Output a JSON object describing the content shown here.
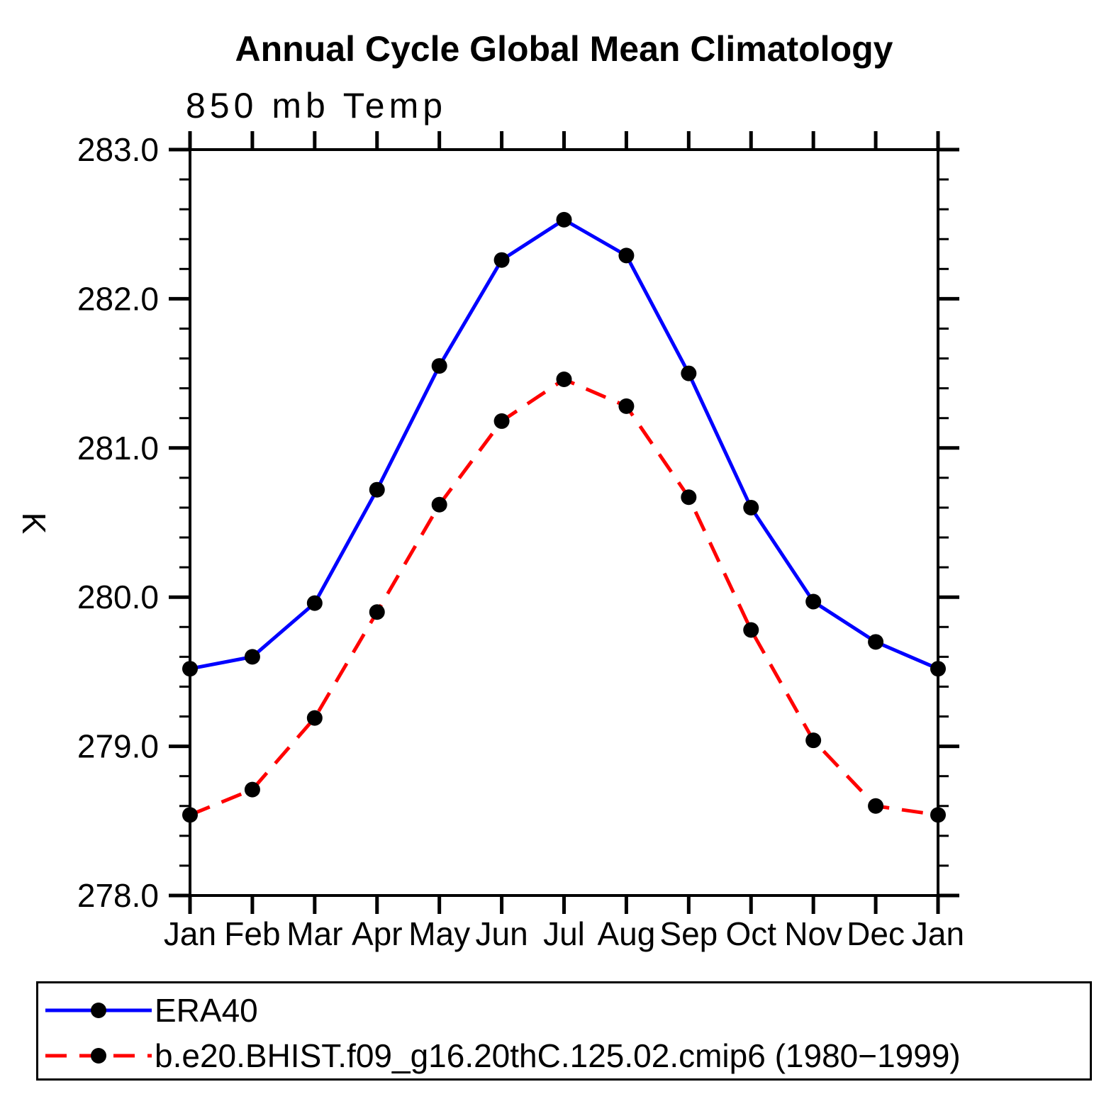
{
  "figure": {
    "background": "#ffffff",
    "frame_color": "#000000"
  },
  "chart_data": {
    "type": "line",
    "title": "Annual Cycle Global Mean Climatology",
    "subtitle": "850 mb Temp",
    "ylabel": "K",
    "xlabel": "",
    "grid": false,
    "legend_position": "bottom",
    "categories": [
      "Jan",
      "Feb",
      "Mar",
      "Apr",
      "May",
      "Jun",
      "Jul",
      "Aug",
      "Sep",
      "Oct",
      "Nov",
      "Dec",
      "Jan"
    ],
    "ylim": [
      278.0,
      283.0
    ],
    "ytick_major_step": 1.0,
    "ytick_minor_step": 0.2,
    "ytick_labels": [
      "278.0",
      "279.0",
      "280.0",
      "281.0",
      "282.0",
      "283.0"
    ],
    "series": [
      {
        "name": "ERA40",
        "color": "#0000ff",
        "line_style": "solid",
        "marker": "circle",
        "marker_color": "#000000",
        "values": [
          279.52,
          279.6,
          279.96,
          280.72,
          281.55,
          282.26,
          282.53,
          282.29,
          281.5,
          280.6,
          279.97,
          279.7,
          279.52
        ]
      },
      {
        "name": "b.e20.BHIST.f09_g16.20thC.125.02.cmip6 (1980−1999)",
        "color": "#ff0000",
        "line_style": "dashed",
        "marker": "circle",
        "marker_color": "#000000",
        "values": [
          278.54,
          278.71,
          279.19,
          279.9,
          280.62,
          281.18,
          281.46,
          281.28,
          280.67,
          279.78,
          279.04,
          278.6,
          278.54
        ]
      }
    ]
  }
}
